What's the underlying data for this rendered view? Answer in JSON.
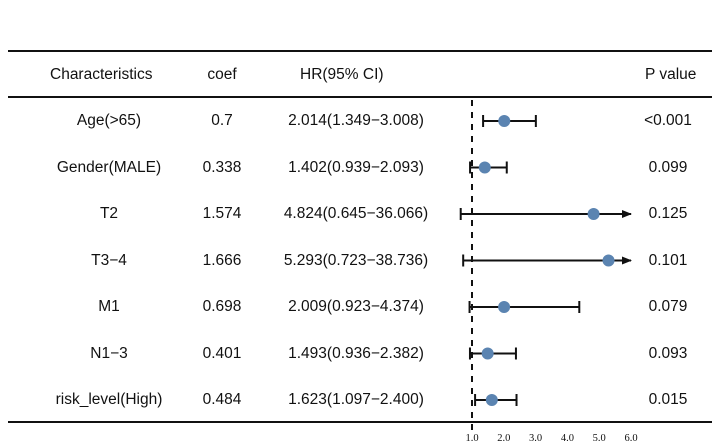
{
  "table": {
    "headers": {
      "characteristics": "Characteristics",
      "coef": "coef",
      "hr": "HR(95% CI)",
      "p": "P value"
    },
    "rows": [
      {
        "name": "Age(>65)",
        "coef": "0.7",
        "hr_text": "2.014(1.349−3.008)",
        "p": "<0.001"
      },
      {
        "name": "Gender(MALE)",
        "coef": "0.338",
        "hr_text": "1.402(0.939−2.093)",
        "p": "0.099"
      },
      {
        "name": "T2",
        "coef": "1.574",
        "hr_text": "4.824(0.645−36.066)",
        "p": "0.125"
      },
      {
        "name": "T3−4",
        "coef": "1.666",
        "hr_text": "5.293(0.723−38.736)",
        "p": "0.101"
      },
      {
        "name": "M1",
        "coef": "0.698",
        "hr_text": "2.009(0.923−4.374)",
        "p": "0.079"
      },
      {
        "name": "N1−3",
        "coef": "0.401",
        "hr_text": "1.493(0.936−2.382)",
        "p": "0.093"
      },
      {
        "name": "risk_level(High)",
        "coef": "0.484",
        "hr_text": "1.623(1.097−2.400)",
        "p": "0.015"
      }
    ]
  },
  "chart_data": {
    "type": "scatter",
    "xlim": [
      1.0,
      6.0
    ],
    "x_ticks": [
      "1.0",
      "2.0",
      "3.0",
      "4.0",
      "5.0",
      "6.0"
    ],
    "reference_line": 1.0,
    "point_color": "#5b84b1",
    "series": [
      {
        "points": [
          {
            "label": "Age(>65)",
            "hr": 2.014,
            "lower": 1.349,
            "upper": 3.008
          },
          {
            "label": "Gender(MALE)",
            "hr": 1.402,
            "lower": 0.939,
            "upper": 2.093
          },
          {
            "label": "T2",
            "hr": 4.824,
            "lower": 0.645,
            "upper": 36.066
          },
          {
            "label": "T3−4",
            "hr": 5.293,
            "lower": 0.723,
            "upper": 38.736
          },
          {
            "label": "M1",
            "hr": 2.009,
            "lower": 0.923,
            "upper": 4.374
          },
          {
            "label": "N1−3",
            "hr": 1.493,
            "lower": 0.936,
            "upper": 2.382
          },
          {
            "label": "risk_level(High)",
            "hr": 1.623,
            "lower": 1.097,
            "upper": 2.4
          }
        ]
      }
    ]
  }
}
